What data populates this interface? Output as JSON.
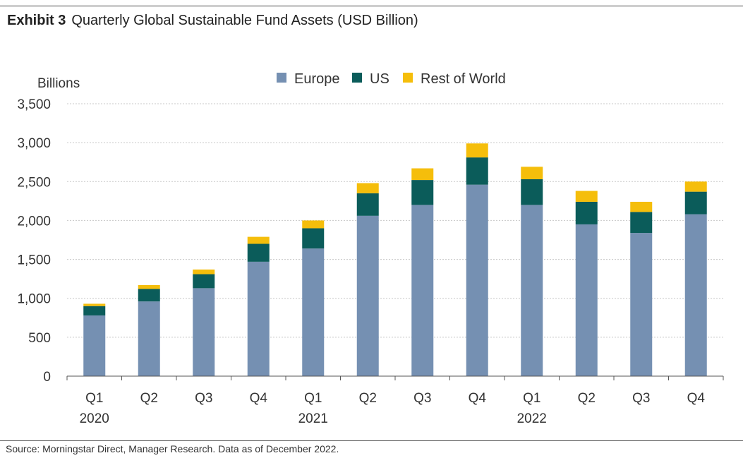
{
  "header": {
    "exhibit_label": "Exhibit 3",
    "title": "Quarterly Global Sustainable Fund Assets (USD Billion)"
  },
  "source": "Source: Morningstar Direct, Manager Research. Data as of December 2022.",
  "colors": {
    "europe": "#7590b2",
    "us": "#0b5c5a",
    "rest_of_world": "#f5be0b",
    "grid": "#c8c8c8",
    "axis": "#555555",
    "text": "#333333"
  },
  "chart_data": {
    "type": "bar",
    "stacked": true,
    "title": "Quarterly Global Sustainable Fund Assets (USD Billion)",
    "ylabel": "Billions",
    "xlabel": "",
    "ylim": [
      0,
      3500
    ],
    "yticks": [
      0,
      500,
      1000,
      1500,
      2000,
      2500,
      3000,
      3500
    ],
    "ytick_labels": [
      "0",
      "500",
      "1,000",
      "1,500",
      "2,000",
      "2,500",
      "3,000",
      "3,500"
    ],
    "grid": true,
    "legend_position": "top-center",
    "categories": [
      "Q1",
      "Q2",
      "Q3",
      "Q4",
      "Q1",
      "Q2",
      "Q3",
      "Q4",
      "Q1",
      "Q2",
      "Q3",
      "Q4"
    ],
    "year_labels": [
      {
        "index": 0,
        "label": "2020"
      },
      {
        "index": 4,
        "label": "2021"
      },
      {
        "index": 8,
        "label": "2022"
      }
    ],
    "series": [
      {
        "name": "Europe",
        "color_key": "europe",
        "values": [
          780,
          960,
          1130,
          1470,
          1640,
          2060,
          2200,
          2460,
          2200,
          1950,
          1840,
          2080
        ]
      },
      {
        "name": "US",
        "color_key": "us",
        "values": [
          120,
          160,
          180,
          230,
          260,
          290,
          320,
          350,
          330,
          290,
          270,
          290
        ]
      },
      {
        "name": "Rest of World",
        "color_key": "rest_of_world",
        "values": [
          30,
          50,
          60,
          90,
          100,
          130,
          150,
          180,
          160,
          140,
          130,
          130
        ]
      }
    ]
  }
}
